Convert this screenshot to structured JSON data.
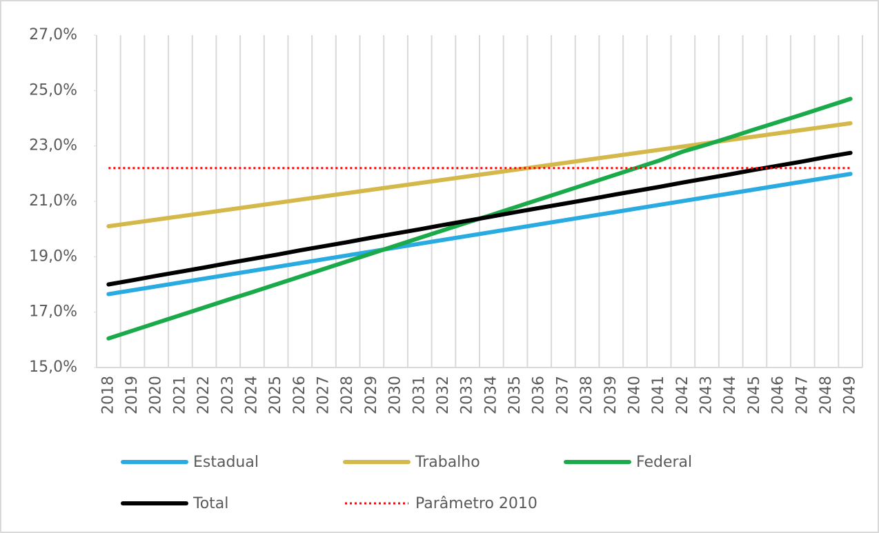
{
  "chart_data": {
    "type": "line",
    "categories": [
      "2018",
      "2019",
      "2020",
      "2021",
      "2022",
      "2023",
      "2024",
      "2025",
      "2026",
      "2027",
      "2028",
      "2029",
      "2030",
      "2031",
      "2032",
      "2033",
      "2034",
      "2035",
      "2036",
      "2037",
      "2038",
      "2039",
      "2040",
      "2041",
      "2042",
      "2043",
      "2044",
      "2045",
      "2046",
      "2047",
      "2048",
      "2049"
    ],
    "series": [
      {
        "name": "Estadual",
        "color": "#29abe2",
        "values": [
          17.65,
          17.79,
          17.93,
          18.07,
          18.21,
          18.35,
          18.49,
          18.63,
          18.77,
          18.91,
          19.05,
          19.19,
          19.33,
          19.47,
          19.61,
          19.75,
          19.89,
          20.03,
          20.17,
          20.31,
          20.45,
          20.59,
          20.73,
          20.87,
          21.01,
          21.15,
          21.29,
          21.43,
          21.57,
          21.71,
          21.85,
          21.99
        ]
      },
      {
        "name": "Trabalho",
        "color": "#d4b84a",
        "values": [
          20.1,
          20.22,
          20.34,
          20.46,
          20.58,
          20.7,
          20.82,
          20.94,
          21.06,
          21.18,
          21.3,
          21.42,
          21.54,
          21.66,
          21.78,
          21.9,
          22.02,
          22.14,
          22.26,
          22.38,
          22.5,
          22.62,
          22.74,
          22.86,
          22.98,
          23.1,
          23.22,
          23.34,
          23.46,
          23.58,
          23.7,
          23.82
        ]
      },
      {
        "name": "Federal",
        "color": "#1aaa4a",
        "values": [
          16.05,
          16.33,
          16.61,
          16.89,
          17.17,
          17.45,
          17.72,
          18.0,
          18.28,
          18.56,
          18.84,
          19.12,
          19.4,
          19.68,
          19.96,
          20.24,
          20.51,
          20.79,
          21.07,
          21.35,
          21.63,
          21.91,
          22.19,
          22.47,
          22.8,
          23.05,
          23.32,
          23.6,
          23.87,
          24.14,
          24.42,
          24.7
        ]
      },
      {
        "name": "Total",
        "color": "#000000",
        "values": [
          18.0,
          18.15,
          18.31,
          18.46,
          18.61,
          18.77,
          18.92,
          19.07,
          19.23,
          19.38,
          19.53,
          19.69,
          19.84,
          19.99,
          20.15,
          20.3,
          20.45,
          20.61,
          20.76,
          20.91,
          21.06,
          21.22,
          21.37,
          21.52,
          21.68,
          21.83,
          21.98,
          22.14,
          22.29,
          22.44,
          22.6,
          22.75
        ]
      },
      {
        "name": "Parâmetro 2010",
        "color": "#ff0000",
        "dotted": true,
        "values": [
          22.2,
          22.2,
          22.2,
          22.2,
          22.2,
          22.2,
          22.2,
          22.2,
          22.2,
          22.2,
          22.2,
          22.2,
          22.2,
          22.2,
          22.2,
          22.2,
          22.2,
          22.2,
          22.2,
          22.2,
          22.2,
          22.2,
          22.2,
          22.2,
          22.2,
          22.2,
          22.2,
          22.2,
          22.2,
          22.2,
          22.2,
          22.2
        ]
      }
    ],
    "ylim": [
      15,
      27
    ],
    "yticks": [
      {
        "value": 15,
        "label": "15,0%"
      },
      {
        "value": 17,
        "label": "17,0%"
      },
      {
        "value": 19,
        "label": "19,0%"
      },
      {
        "value": 21,
        "label": "21,0%"
      },
      {
        "value": 23,
        "label": "23,0%"
      },
      {
        "value": 25,
        "label": "25,0%"
      },
      {
        "value": 27,
        "label": "27,0%"
      }
    ],
    "grid": "x",
    "legend": "bottom"
  }
}
